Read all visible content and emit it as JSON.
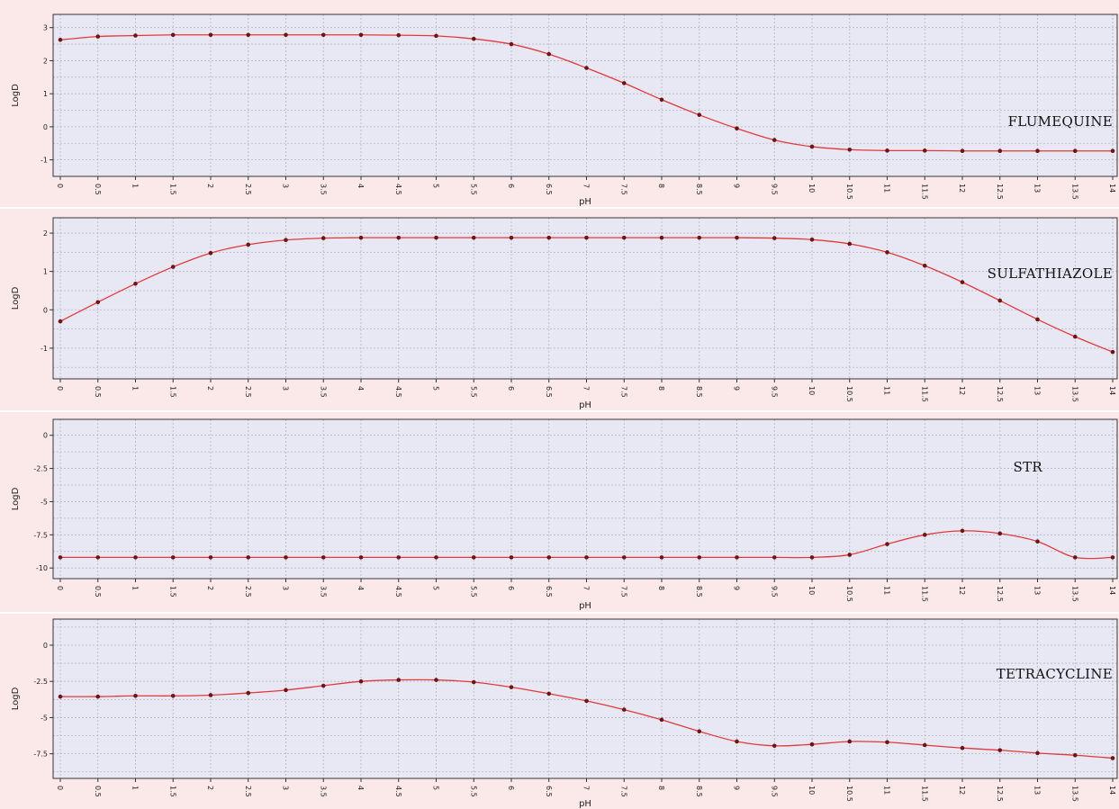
{
  "colors": {
    "panel_bg": "#fbe9ea",
    "plot_bg": "#e8e8f4",
    "grid": "#b4b4c4",
    "line": "#e03a3a",
    "marker": "#6e1414",
    "axis": "#333333"
  },
  "chart_data": [
    {
      "type": "line",
      "annotation": "FLUMEQUINE",
      "xlabel": "pH",
      "ylabel": "LogD",
      "xlim": [
        0,
        14
      ],
      "ylim": [
        -1.5,
        3.4
      ],
      "yticks": [
        -1,
        0,
        1,
        2,
        3
      ],
      "ytick_labels": [
        "-1",
        "0",
        "1",
        "2",
        "3"
      ],
      "grid": true,
      "x": [
        0,
        0.5,
        1,
        1.5,
        2,
        2.5,
        3,
        3.5,
        4,
        4.5,
        5,
        5.5,
        6,
        6.5,
        7,
        7.5,
        8,
        8.5,
        9,
        9.5,
        10,
        10.5,
        11,
        11.5,
        12,
        12.5,
        13,
        13.5,
        14
      ],
      "y": [
        2.63,
        2.73,
        2.76,
        2.78,
        2.78,
        2.78,
        2.78,
        2.78,
        2.78,
        2.77,
        2.75,
        2.66,
        2.5,
        2.2,
        1.78,
        1.32,
        0.82,
        0.36,
        -0.05,
        -0.4,
        -0.6,
        -0.69,
        -0.72,
        -0.72,
        -0.73,
        -0.73,
        -0.73,
        -0.73,
        -0.73
      ]
    },
    {
      "type": "line",
      "annotation": "SULFATHIAZOLE",
      "xlabel": "pH",
      "ylabel": "LogD",
      "xlim": [
        0,
        14
      ],
      "ylim": [
        -1.8,
        2.4
      ],
      "yticks": [
        -1,
        0,
        1,
        2
      ],
      "ytick_labels": [
        "-1",
        "0",
        "1",
        "2"
      ],
      "grid": true,
      "x": [
        0,
        0.5,
        1,
        1.5,
        2,
        2.5,
        3,
        3.5,
        4,
        4.5,
        5,
        5.5,
        6,
        6.5,
        7,
        7.5,
        8,
        8.5,
        9,
        9.5,
        10,
        10.5,
        11,
        11.5,
        12,
        12.5,
        13,
        13.5,
        14
      ],
      "y": [
        -0.3,
        0.2,
        0.68,
        1.12,
        1.48,
        1.7,
        1.82,
        1.87,
        1.88,
        1.88,
        1.88,
        1.88,
        1.88,
        1.88,
        1.88,
        1.88,
        1.88,
        1.88,
        1.88,
        1.87,
        1.83,
        1.72,
        1.5,
        1.15,
        0.72,
        0.24,
        -0.25,
        -0.7,
        -1.1
      ]
    },
    {
      "type": "line",
      "annotation": "STR",
      "xlabel": "pH",
      "ylabel": "LogD",
      "xlim": [
        0,
        14
      ],
      "ylim": [
        -10.8,
        1.2
      ],
      "yticks": [
        0,
        -2.5,
        -5,
        -7.5,
        -10
      ],
      "ytick_labels": [
        "0",
        "-2.5",
        "-5",
        "-7.5",
        "-10"
      ],
      "grid": true,
      "x": [
        0,
        0.5,
        1,
        1.5,
        2,
        2.5,
        3,
        3.5,
        4,
        4.5,
        5,
        5.5,
        6,
        6.5,
        7,
        7.5,
        8,
        8.5,
        9,
        9.5,
        10,
        10.5,
        11,
        11.5,
        12,
        12.5,
        13,
        13.5,
        14
      ],
      "y": [
        -9.2,
        -9.2,
        -9.2,
        -9.2,
        -9.2,
        -9.2,
        -9.2,
        -9.2,
        -9.2,
        -9.2,
        -9.2,
        -9.2,
        -9.2,
        -9.2,
        -9.2,
        -9.2,
        -9.2,
        -9.2,
        -9.2,
        -9.2,
        -9.2,
        -9.0,
        -8.2,
        -7.5,
        -7.2,
        -7.4,
        -8.0,
        -9.2,
        -9.2
      ]
    },
    {
      "type": "line",
      "annotation": "TETRACYCLINE",
      "xlabel": "pH",
      "ylabel": "LogD",
      "xlim": [
        0,
        14
      ],
      "ylim": [
        -9.2,
        1.8
      ],
      "yticks": [
        0,
        -2.5,
        -5,
        -7.5
      ],
      "ytick_labels": [
        "0",
        "-2.5",
        "-5",
        "-7.5"
      ],
      "grid": true,
      "x": [
        0,
        0.5,
        1,
        1.5,
        2,
        2.5,
        3,
        3.5,
        4,
        4.5,
        5,
        5.5,
        6,
        6.5,
        7,
        7.5,
        8,
        8.5,
        9,
        9.5,
        10,
        10.5,
        11,
        11.5,
        12,
        12.5,
        13,
        13.5,
        14
      ],
      "y": [
        -3.55,
        -3.55,
        -3.5,
        -3.5,
        -3.45,
        -3.3,
        -3.1,
        -2.8,
        -2.5,
        -2.4,
        -2.4,
        -2.55,
        -2.9,
        -3.35,
        -3.85,
        -4.45,
        -5.15,
        -5.95,
        -6.65,
        -6.95,
        -6.85,
        -6.65,
        -6.7,
        -6.9,
        -7.1,
        -7.25,
        -7.45,
        -7.6,
        -7.8
      ]
    }
  ],
  "x_tick_labels": [
    "0",
    "0.5",
    "1",
    "1.5",
    "2",
    "2.5",
    "3",
    "3.5",
    "4",
    "4.5",
    "5",
    "5.5",
    "6",
    "6.5",
    "7",
    "7.5",
    "8",
    "8.5",
    "9",
    "9.5",
    "10",
    "10.5",
    "11",
    "11.5",
    "12",
    "12.5",
    "13",
    "13.5",
    "14"
  ]
}
